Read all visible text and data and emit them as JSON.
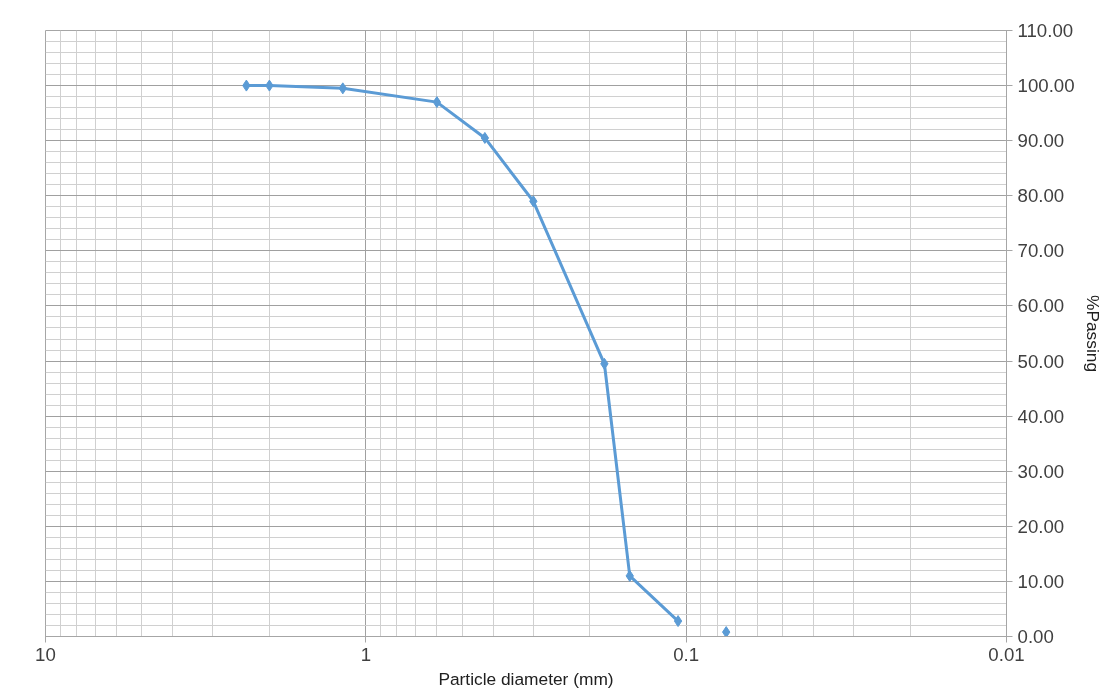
{
  "chart_data": {
    "type": "line",
    "xlabel": "Particle diameter (mm)",
    "ylabel": "%Passing",
    "log": "x",
    "grid": true,
    "marker": "diamond",
    "xlim": [
      10,
      0.01
    ],
    "xticks": [
      10,
      1,
      0.1,
      0.01
    ],
    "ylim": [
      0,
      110
    ],
    "yticks": [
      {
        "value": 0,
        "label": "0.00"
      },
      {
        "value": 10,
        "label": "10.00"
      },
      {
        "value": 20,
        "label": "20.00"
      },
      {
        "value": 30,
        "label": "30.00"
      },
      {
        "value": 40,
        "label": "40.00"
      },
      {
        "value": 50,
        "label": "50.00"
      },
      {
        "value": 60,
        "label": "60.00"
      },
      {
        "value": 70,
        "label": "70.00"
      },
      {
        "value": 80,
        "label": "80.00"
      },
      {
        "value": 90,
        "label": "90.00"
      },
      {
        "value": 100,
        "label": "100.00"
      },
      {
        "value": 110,
        "label": "110.00"
      }
    ],
    "series": [
      {
        "color": "#5b9bd5",
        "x": [
          2.36,
          2.0,
          1.18,
          0.6,
          0.425,
          0.3,
          0.18,
          0.15,
          0.106
        ],
        "values": [
          100,
          100,
          99.5,
          97,
          90.5,
          79,
          49.5,
          11,
          2.8
        ]
      },
      {
        "type": "scatter",
        "color": "#5b9bd5",
        "x": [
          0.075
        ],
        "values": [
          0.8
        ]
      }
    ]
  }
}
